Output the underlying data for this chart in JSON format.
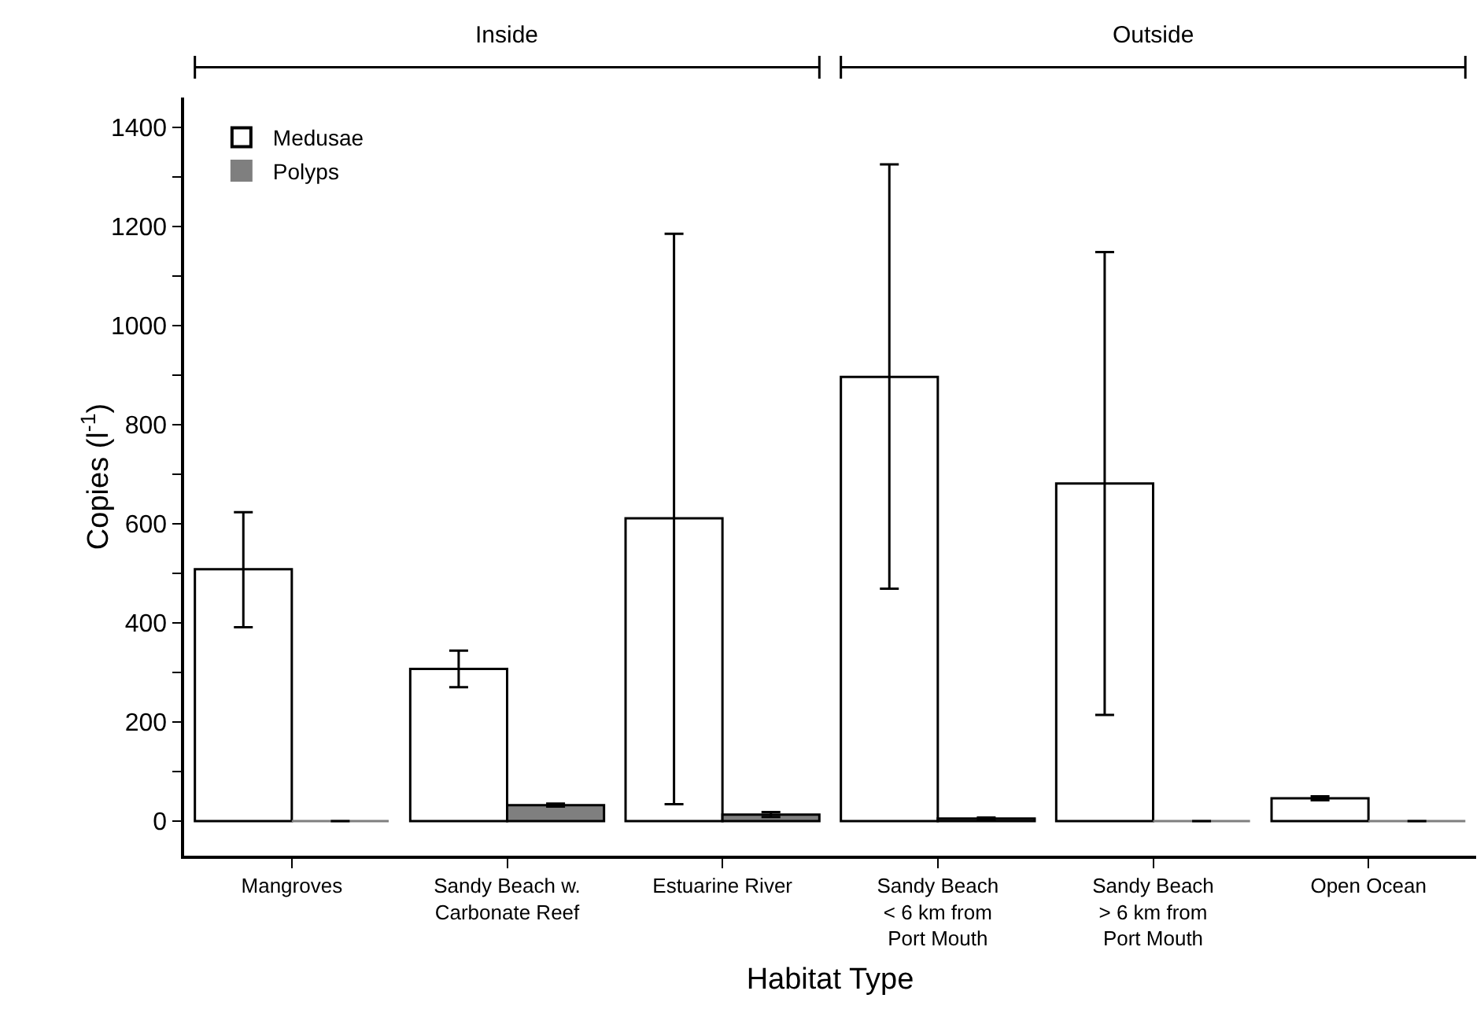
{
  "chart_data": {
    "type": "bar",
    "xlabel": "Habitat Type",
    "ylabel": "Copies (l$^{-1}$)",
    "categories": [
      "Mangroves",
      "Sandy Beach w.\nCarbonate Reef",
      "Estuarine River",
      "Sandy Beach\n< 6 km from\nPort Mouth",
      "Sandy Beach\n> 6 km from\nPort Mouth",
      "Open Ocean"
    ],
    "series": [
      {
        "name": "Medusae",
        "color": "#ffffff",
        "values": [
          508,
          307,
          611,
          896,
          681,
          46
        ],
        "errors": [
          [
            391,
            623
          ],
          [
            270,
            344
          ],
          [
            34,
            1185
          ],
          [
            469,
            1325
          ],
          [
            214,
            1148
          ],
          [
            42,
            50
          ]
        ]
      },
      {
        "name": "Polyps",
        "color": "#7f7f7f",
        "values": [
          0,
          32,
          13,
          5,
          0,
          0
        ],
        "errors": [
          null,
          [
            29,
            35
          ],
          [
            8,
            18
          ],
          [
            3,
            7
          ],
          null,
          null
        ]
      }
    ],
    "ylim": [
      -70,
      1460
    ],
    "yticks": [
      0,
      {
        "value": 100,
        "label": null
      },
      200,
      {
        "value": 300,
        "label": null
      },
      400,
      {
        "value": 500,
        "label": null
      },
      600,
      {
        "value": 700,
        "label": null
      },
      800,
      {
        "value": 900,
        "label": null
      },
      1000,
      {
        "value": 1100,
        "label": null
      },
      1200,
      {
        "value": 1300,
        "label": null
      },
      1400
    ],
    "annotations": [
      "Inside",
      "Outside"
    ],
    "legend": "top left",
    "grid": false
  }
}
